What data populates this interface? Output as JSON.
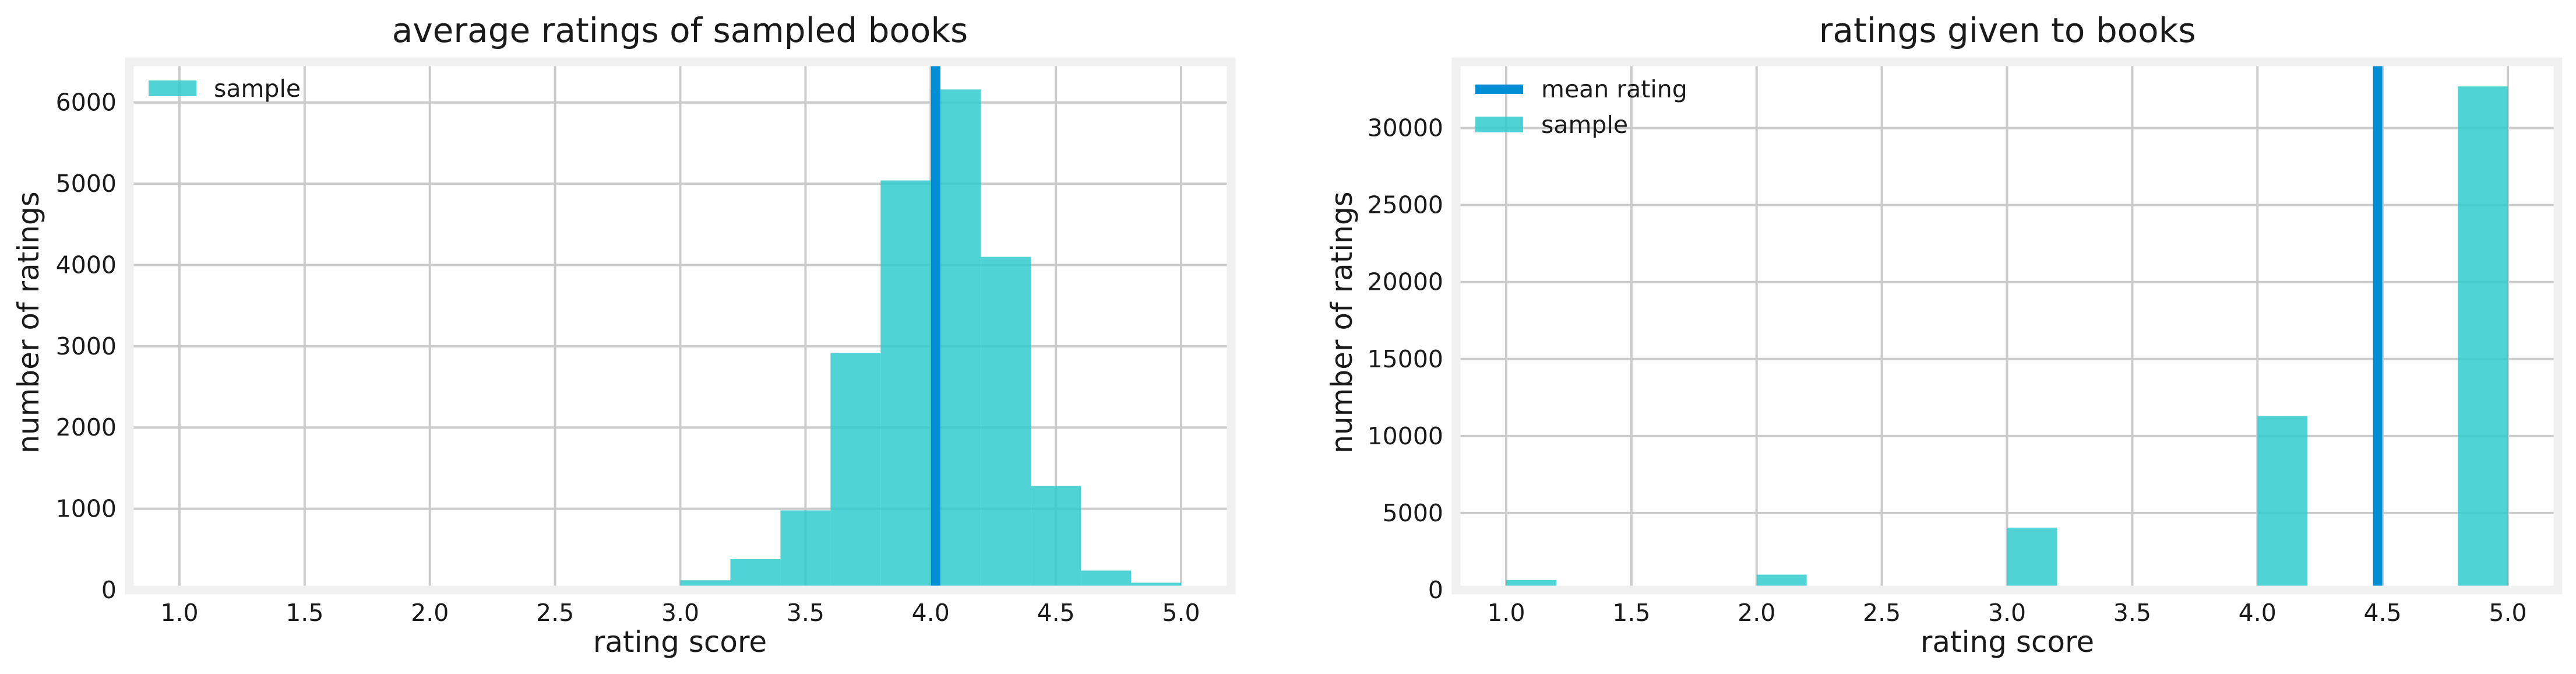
{
  "colors": {
    "bar": "#30cbcc",
    "mean_line": "#008fd5",
    "grid": "#cbcbcb",
    "frame": "#f0f0f0"
  },
  "chart_data": [
    {
      "type": "bar",
      "title": "average ratings of sampled books",
      "xlabel": "rating score",
      "ylabel": "number of ratings",
      "xlim": [
        0.8,
        5.2
      ],
      "ylim": [
        0,
        6500
      ],
      "xticks": [
        "1.0",
        "1.5",
        "2.0",
        "2.5",
        "3.0",
        "3.5",
        "4.0",
        "4.5",
        "5.0"
      ],
      "yticks": [
        "0",
        "1000",
        "2000",
        "3000",
        "4000",
        "5000",
        "6000"
      ],
      "legend": {
        "position": "top-left",
        "entries": [
          "sample"
        ]
      },
      "grid": true,
      "mean_line": 4.02,
      "bins": [
        {
          "x0": 3.0,
          "x1": 3.2,
          "value": 120
        },
        {
          "x0": 3.2,
          "x1": 3.4,
          "value": 380
        },
        {
          "x0": 3.4,
          "x1": 3.6,
          "value": 980
        },
        {
          "x0": 3.6,
          "x1": 3.8,
          "value": 2920
        },
        {
          "x0": 3.8,
          "x1": 4.0,
          "value": 5040
        },
        {
          "x0": 4.0,
          "x1": 4.2,
          "value": 6160
        },
        {
          "x0": 4.2,
          "x1": 4.4,
          "value": 4100
        },
        {
          "x0": 4.4,
          "x1": 4.6,
          "value": 1280
        },
        {
          "x0": 4.6,
          "x1": 4.8,
          "value": 240
        },
        {
          "x0": 4.8,
          "x1": 5.0,
          "value": 90
        }
      ]
    },
    {
      "type": "bar",
      "title": "ratings given to books",
      "xlabel": "rating score",
      "ylabel": "number of ratings",
      "xlim": [
        0.8,
        5.2
      ],
      "ylim": [
        0,
        34300
      ],
      "xticks": [
        "1.0",
        "1.5",
        "2.0",
        "2.5",
        "3.0",
        "3.5",
        "4.0",
        "4.5",
        "5.0"
      ],
      "yticks": [
        "0",
        "5000",
        "10000",
        "15000",
        "20000",
        "25000",
        "30000"
      ],
      "legend": {
        "position": "top-left",
        "entries": [
          "mean rating",
          "sample"
        ]
      },
      "grid": true,
      "mean_line": 4.48,
      "bins": [
        {
          "x0": 1.0,
          "x1": 1.2,
          "value": 650
        },
        {
          "x0": 2.0,
          "x1": 2.2,
          "value": 1000
        },
        {
          "x0": 3.0,
          "x1": 3.2,
          "value": 4050
        },
        {
          "x0": 4.0,
          "x1": 4.2,
          "value": 11300
        },
        {
          "x0": 4.8,
          "x1": 5.0,
          "value": 32700
        }
      ]
    }
  ]
}
